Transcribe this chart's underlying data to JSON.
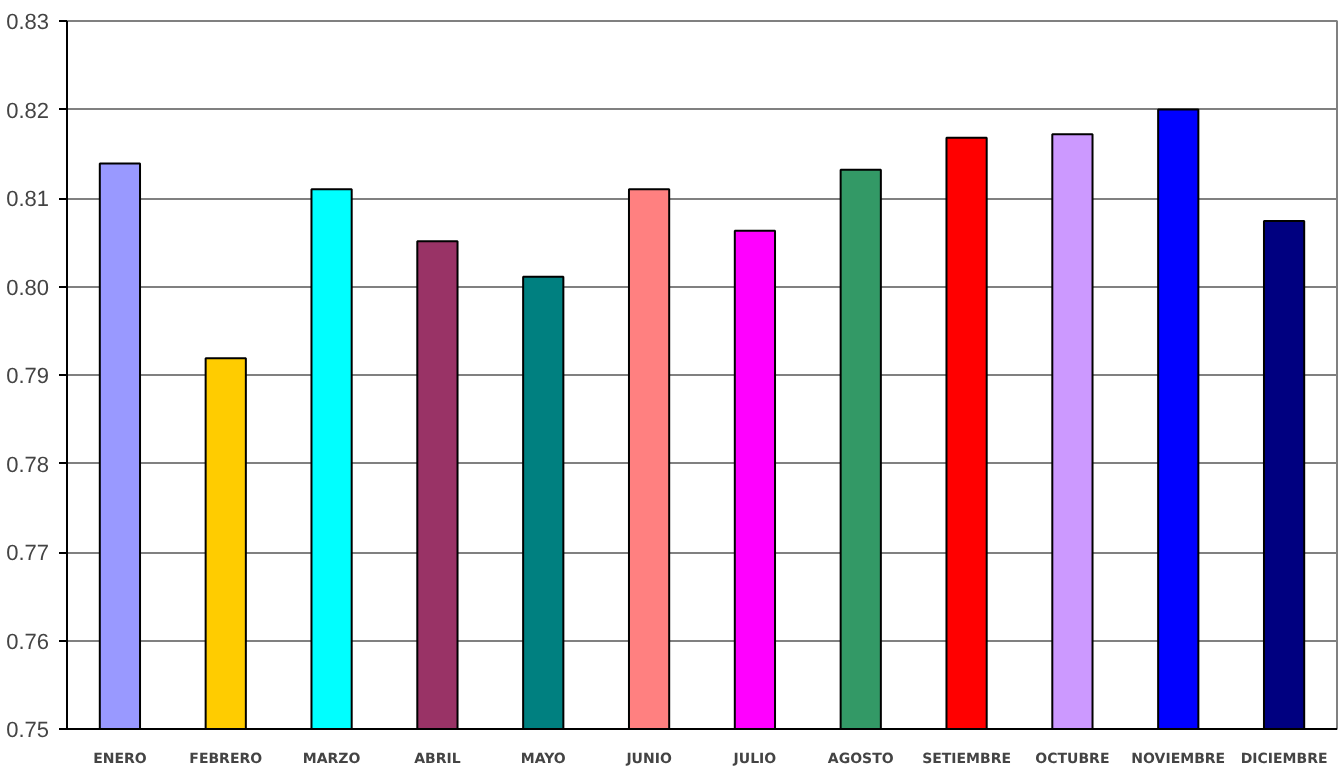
{
  "chart_data": {
    "type": "bar",
    "categories": [
      "ENERO",
      "FEBRERO",
      "MARZO",
      "ABRIL",
      "MAYO",
      "JUNIO",
      "JULIO",
      "AGOSTO",
      "SETIEMBRE",
      "OCTUBRE",
      "NOVIEMBRE",
      "DICIEMBRE"
    ],
    "values": [
      0.8139,
      0.7919,
      0.811,
      0.8051,
      0.8011,
      0.811,
      0.8063,
      0.8132,
      0.8168,
      0.8172,
      0.82,
      0.8074
    ],
    "colors": [
      "#9999ff",
      "#ffcc00",
      "#00ffff",
      "#993366",
      "#008080",
      "#ff8080",
      "#ff00ff",
      "#339966",
      "#ff0000",
      "#cc99ff",
      "#0000ff",
      "#000080"
    ],
    "ylim": [
      0.75,
      0.83
    ],
    "yticks": [
      0.75,
      0.76,
      0.77,
      0.78,
      0.79,
      {
        "value": 0.8,
        "label": "0.80"
      },
      0.81,
      0.82,
      0.83
    ],
    "grid": "y"
  }
}
